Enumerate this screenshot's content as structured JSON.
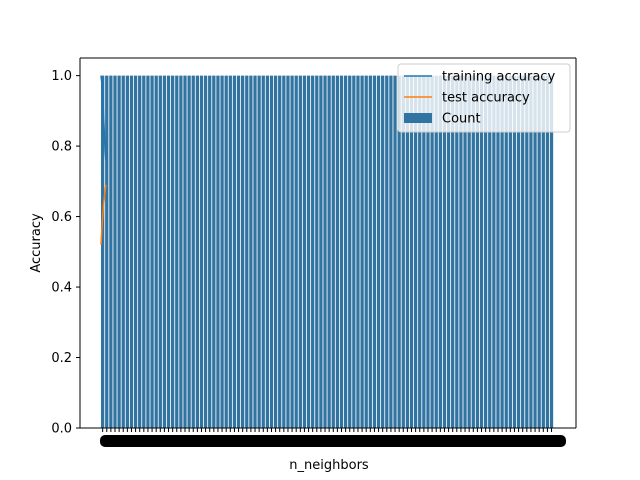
{
  "chart_data": {
    "type": "bar",
    "title": "",
    "xlabel": "n_neighbors",
    "ylabel": "Accuracy",
    "ylim": [
      0,
      1.05
    ],
    "y_ticks": [
      "0.0",
      "0.2",
      "0.4",
      "0.6",
      "0.8",
      "1.0"
    ],
    "grid": false,
    "legend_position": "upper-right",
    "colors": {
      "bars": "#3274a1",
      "training_line": "#1f77b4",
      "test_line": "#ff7f0e"
    },
    "legend": [
      {
        "label": "training accuracy",
        "kind": "line",
        "color": "#1f77b4"
      },
      {
        "label": "test accuracy",
        "kind": "line",
        "color": "#ff7f0e"
      },
      {
        "label": "Count",
        "kind": "patch",
        "color": "#3274a1"
      }
    ],
    "bars": {
      "name": "Count",
      "count": 110,
      "values_note": "every bar reaches 1.0",
      "value": 1.0
    },
    "series": [
      {
        "name": "training accuracy",
        "x": [
          1,
          2,
          3,
          4,
          5
        ],
        "values": [
          1.0,
          0.97,
          0.9,
          0.82,
          0.76
        ]
      },
      {
        "name": "test accuracy",
        "x": [
          1,
          2,
          3,
          4,
          5
        ],
        "values": [
          0.52,
          0.58,
          0.63,
          0.66,
          0.69
        ]
      }
    ],
    "x_tick_labels_unreadable": true
  }
}
